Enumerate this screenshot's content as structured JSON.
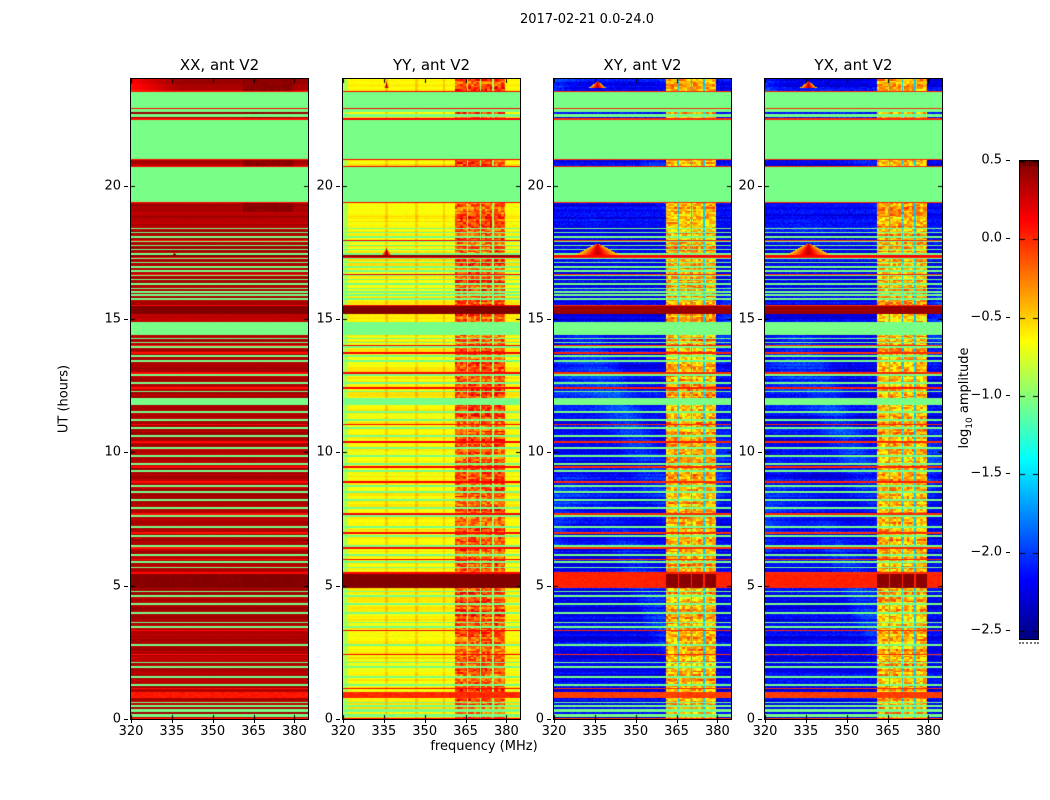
{
  "figure": {
    "title": "2017-02-21 0.0-24.0",
    "xlabel": "frequency (MHz)",
    "ylabel": "UT (hours)"
  },
  "colorbar": {
    "label_prefix": "log",
    "label_sub": "10",
    "label_suffix": " amplitude",
    "ticks": [
      "0.5",
      "0.0",
      "−0.5",
      "−1.0",
      "−1.5",
      "−2.0",
      "−2.5"
    ],
    "tick_values": [
      0.5,
      0.0,
      -0.5,
      -1.0,
      -1.5,
      -2.0,
      -2.5
    ],
    "colormap": "jet"
  },
  "chart_data": {
    "type": "heatmap",
    "title": "2017-02-21 0.0-24.0",
    "xlabel": "frequency (MHz)",
    "ylabel": "UT (hours)",
    "value_label": "log10 amplitude",
    "x_range": [
      320,
      385
    ],
    "y_range": [
      0,
      24
    ],
    "x_ticks": [
      320,
      335,
      350,
      365,
      380
    ],
    "y_ticks": [
      0,
      5,
      10,
      15,
      20
    ],
    "value_range": [
      -2.55,
      0.5
    ],
    "flag_value": -1.05,
    "rfi_span": [
      361.3,
      379.4
    ],
    "rfi_bands": [
      [
        361.3,
        365.4
      ],
      [
        365.9,
        370.3
      ],
      [
        370.8,
        374.9
      ],
      [
        375.4,
        379.4
      ]
    ],
    "flare": {
      "hour": 17.35,
      "freq": 336,
      "spike_base": 23.68
    },
    "bands": [
      [
        24.0,
        23.55,
        "data"
      ],
      [
        23.55,
        23.5,
        "line"
      ],
      [
        23.5,
        22.9,
        "flag"
      ],
      [
        22.9,
        22.86,
        "line"
      ],
      [
        22.86,
        22.44,
        "stripes"
      ],
      [
        22.44,
        20.99,
        "flag"
      ],
      [
        20.99,
        20.95,
        "line"
      ],
      [
        20.95,
        20.75,
        "data"
      ],
      [
        20.75,
        20.71,
        "line"
      ],
      [
        20.71,
        19.39,
        "flag"
      ],
      [
        19.39,
        19.34,
        "line"
      ],
      [
        19.34,
        18.42,
        "data"
      ],
      [
        18.42,
        16.12,
        "stripes2"
      ],
      [
        16.12,
        15.54,
        "data"
      ],
      [
        15.54,
        15.48,
        "line"
      ],
      [
        15.48,
        15.18,
        "hot"
      ],
      [
        15.18,
        14.89,
        "data"
      ],
      [
        14.89,
        14.47,
        "flag"
      ],
      [
        14.47,
        14.26,
        "stripes"
      ],
      [
        14.26,
        12.03,
        "data"
      ],
      [
        12.03,
        11.77,
        "flag"
      ],
      [
        11.77,
        5.52,
        "data"
      ],
      [
        5.52,
        5.44,
        "line"
      ],
      [
        5.44,
        4.92,
        "hot2"
      ],
      [
        4.92,
        1.03,
        "data"
      ],
      [
        1.03,
        0.78,
        "line2"
      ],
      [
        0.78,
        0.36,
        "data"
      ],
      [
        0.36,
        0.0,
        "stripes"
      ]
    ],
    "green_lines": [
      16.02,
      15.9,
      15.76,
      14.12,
      13.95,
      13.6,
      13.42,
      12.9,
      12.6,
      12.28,
      11.5,
      11.2,
      10.9,
      10.62,
      10.15,
      9.85,
      9.55,
      9.3,
      8.75,
      8.5,
      8.2,
      7.9,
      7.6,
      7.2,
      6.85,
      6.5,
      6.15,
      5.9,
      5.68,
      4.78,
      4.62,
      4.3,
      3.98,
      3.62,
      3.45,
      2.78,
      2.12,
      1.96,
      1.58,
      1.28,
      0.62,
      0.5
    ],
    "red_lines": [
      13.98,
      13.72,
      12.98,
      12.42,
      11.05,
      10.38,
      9.45,
      8.88,
      7.68,
      6.98,
      6.42,
      5.98,
      3.32,
      2.42,
      1.15
    ],
    "panels": [
      {
        "id": "xx",
        "title": "XX, ant V2",
        "base": 0.36,
        "row_var": 0.07,
        "noise": 0.015,
        "cloud_amp": 0,
        "rfi_base": 0.46,
        "rfi_var": 0.04,
        "gap_value": 0.44,
        "rfi_min_hour": 19,
        "line_value": 0.08,
        "line2_value": 0.05,
        "hot_value": 0.5,
        "hot2_value": 0.48,
        "hot2_rfi": 0.5,
        "flare_line": 0.5,
        "flare_h": 0.12,
        "flare_w": 1.5,
        "flare_peak": 0.5,
        "flare_grad": 0.2,
        "spike_h": 0,
        "spike_w": 0
      },
      {
        "id": "yy",
        "title": "YY, ant V2",
        "base": -0.62,
        "row_var": 0.09,
        "noise": 0.03,
        "cloud_amp": 0,
        "rfi_base": -0.12,
        "rfi_var": 0.24,
        "gap_value": -0.92,
        "rfi_min_hour": -1,
        "line_value": 0.12,
        "line2_value": 0.0,
        "hot_value": 0.5,
        "hot2_value": 0.5,
        "hot2_rfi": 0.5,
        "flare_line": 0.45,
        "flare_h": 0.3,
        "flare_w": 2.2,
        "flare_peak": 0.45,
        "flare_grad": 0.9,
        "spike_h": 0.2,
        "spike_w": 0.9,
        "left_edge_value": -0.88,
        "vlines": [
          336,
          347,
          357
        ],
        "vline_boost": 0.14
      },
      {
        "id": "xy",
        "title": "XY, ant V2",
        "base": -2.2,
        "row_var": 0.12,
        "noise": 0.12,
        "cloud_amp": 0.5,
        "rfi_base": -0.42,
        "rfi_var": 0.26,
        "gap_value": -1.55,
        "rfi_min_hour": -1,
        "line_value": 0.0,
        "line2_value": -0.06,
        "hot_value": 0.42,
        "hot2_value": 0.02,
        "hot2_rfi": 0.46,
        "flare_line": 0.12,
        "flare_h": 0.5,
        "flare_w": 9,
        "flare_peak": 0.32,
        "flare_grad": 0.85,
        "spike_h": 0.24,
        "spike_w": 3
      },
      {
        "id": "yx",
        "title": "YX, ant V2",
        "base": -2.2,
        "row_var": 0.12,
        "noise": 0.12,
        "cloud_amp": 0.5,
        "rfi_base": -0.42,
        "rfi_var": 0.26,
        "gap_value": -1.55,
        "rfi_min_hour": -1,
        "line_value": 0.0,
        "line2_value": -0.06,
        "hot_value": 0.42,
        "hot2_value": 0.02,
        "hot2_rfi": 0.46,
        "flare_line": 0.12,
        "flare_h": 0.5,
        "flare_w": 9,
        "flare_peak": 0.32,
        "flare_grad": 0.85,
        "spike_h": 0.24,
        "spike_w": 3
      }
    ]
  }
}
